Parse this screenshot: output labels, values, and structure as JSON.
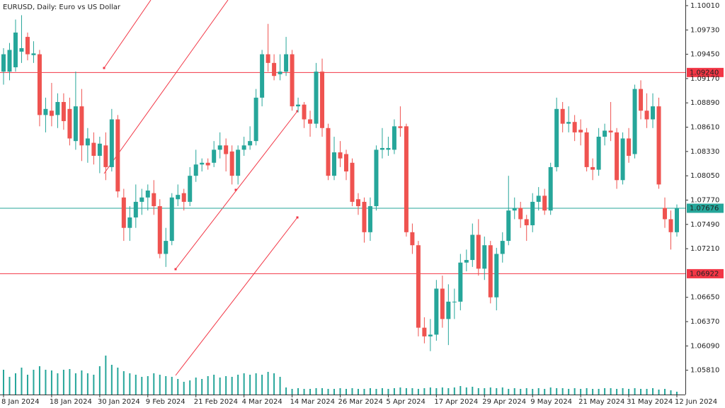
{
  "chart_data": {
    "type": "candlestick",
    "title": "EURUSD, Daily:  Euro vs US Dollar",
    "up_color": "#26a69a",
    "down_color": "#ef5350",
    "volume_color": "#26a69a",
    "categories": [
      "8 Jan 2024",
      null,
      null,
      null,
      null,
      null,
      null,
      null,
      "18 Jan 2024",
      null,
      null,
      null,
      null,
      null,
      null,
      null,
      "30 Jan 2024",
      null,
      null,
      null,
      null,
      null,
      null,
      null,
      "9 Feb 2024",
      null,
      null,
      null,
      null,
      null,
      null,
      null,
      "21 Feb 2024",
      null,
      null,
      null,
      null,
      null,
      null,
      null,
      "4 Mar 2024",
      null,
      null,
      null,
      null,
      null,
      null,
      null,
      "14 Mar 2024",
      null,
      null,
      null,
      null,
      null,
      null,
      null,
      "26 Mar 2024",
      null,
      null,
      null,
      null,
      null,
      null,
      null,
      "5 Apr 2024",
      null,
      null,
      null,
      null,
      null,
      null,
      null,
      "17 Apr 2024",
      null,
      null,
      null,
      null,
      null,
      null,
      null,
      "29 Apr 2024",
      null,
      null,
      null,
      null,
      null,
      null,
      null,
      "9 May 2024",
      null,
      null,
      null,
      null,
      null,
      null,
      null,
      "21 May 2024",
      null,
      null,
      null,
      null,
      null,
      null,
      null,
      "31 May 2024",
      null,
      null,
      null,
      null,
      null,
      null,
      null,
      "12 Jun 2024"
    ],
    "open": [
      1.0925,
      1.0925,
      1.093,
      1.0948,
      1.0965,
      1.0944,
      1.0945,
      1.0875,
      1.088,
      1.0875,
      1.089,
      1.0882,
      1.0845,
      1.0885,
      1.084,
      1.0843,
      1.0828,
      1.084,
      1.0815,
      1.087,
      1.078,
      1.0745,
      1.0757,
      1.0775,
      1.078,
      1.0785,
      1.077,
      1.0715,
      1.073,
      1.0778,
      1.0785,
      1.0775,
      1.0805,
      1.0818,
      1.082,
      1.082,
      1.0835,
      1.084,
      1.0833,
      1.0805,
      1.0835,
      1.084,
      1.0845,
      1.0895,
      1.0945,
      1.0935,
      1.0922,
      1.0925,
      1.0945,
      1.0885,
      1.0887,
      1.087,
      1.0865,
      1.0925,
      1.086,
      1.0805,
      1.0832,
      1.083,
      1.082,
      1.0778,
      1.0775,
      1.074,
      1.077,
      1.0835,
      1.0835,
      1.0835,
      1.0862,
      1.0862,
      1.074,
      1.0725,
      1.063,
      1.062,
      1.0622,
      1.0675,
      1.064,
      1.066,
      1.066,
      1.0705,
      1.0708,
      1.0737,
      1.0698,
      1.0725,
      1.0665,
      1.0715,
      1.073,
      1.0765,
      1.0768,
      1.0755,
      1.0748,
      1.0775,
      1.0782,
      1.0765,
      1.0815,
      1.0882,
      1.0865,
      1.0867,
      1.0858,
      1.0855,
      1.0815,
      1.0812,
      1.085,
      1.0857,
      1.0855,
      1.08,
      1.0848,
      1.083,
      1.0905,
      1.088,
      1.087,
      1.0885,
      1.0768,
      1.0755,
      1.074
    ],
    "high": [
      1.0952,
      1.0958,
      1.0985,
      1.099,
      1.097,
      1.096,
      1.095,
      1.0895,
      1.0912,
      1.09,
      1.09,
      1.0895,
      1.0925,
      1.0905,
      1.086,
      1.0855,
      1.085,
      1.0855,
      1.0882,
      1.0875,
      1.079,
      1.077,
      1.0795,
      1.079,
      1.0795,
      1.08,
      1.0778,
      1.0745,
      1.0785,
      1.0795,
      1.079,
      1.0815,
      1.0835,
      1.0825,
      1.0825,
      1.0845,
      1.0855,
      1.0848,
      1.084,
      1.084,
      1.085,
      1.0862,
      1.0905,
      1.095,
      1.098,
      1.0945,
      1.0945,
      1.0965,
      1.095,
      1.0895,
      1.089,
      1.088,
      1.0935,
      1.094,
      1.0865,
      1.085,
      1.0845,
      1.0835,
      1.0825,
      1.0785,
      1.078,
      1.078,
      1.084,
      1.086,
      1.085,
      1.087,
      1.0885,
      1.0865,
      1.075,
      1.073,
      1.0642,
      1.064,
      1.0685,
      1.069,
      1.068,
      1.0675,
      1.0715,
      1.072,
      1.075,
      1.0755,
      1.0735,
      1.073,
      1.0722,
      1.074,
      1.0805,
      1.078,
      1.0775,
      1.076,
      1.0785,
      1.0792,
      1.079,
      1.082,
      1.0895,
      1.089,
      1.0885,
      1.0875,
      1.087,
      1.086,
      1.0825,
      1.086,
      1.0865,
      1.089,
      1.086,
      1.0855,
      1.086,
      1.091,
      1.0915,
      1.09,
      1.09,
      1.0895,
      1.078,
      1.0765,
      1.0772
    ],
    "low": [
      1.091,
      1.0915,
      1.0925,
      1.0935,
      1.0938,
      1.0935,
      1.0862,
      1.0855,
      1.0862,
      1.086,
      1.0858,
      1.084,
      1.0835,
      1.0822,
      1.082,
      1.0818,
      1.0808,
      1.08,
      1.081,
      1.078,
      1.073,
      1.073,
      1.0745,
      1.076,
      1.0765,
      1.076,
      1.071,
      1.07,
      1.0725,
      1.077,
      1.0765,
      1.077,
      1.0798,
      1.081,
      1.0812,
      1.0815,
      1.0825,
      1.081,
      1.0795,
      1.0795,
      1.0828,
      1.0835,
      1.084,
      1.0885,
      1.0925,
      1.0915,
      1.0915,
      1.092,
      1.088,
      1.0878,
      1.086,
      1.085,
      1.086,
      1.085,
      1.08,
      1.08,
      1.0815,
      1.08,
      1.077,
      1.076,
      1.0728,
      1.073,
      1.0765,
      1.0825,
      1.0828,
      1.083,
      1.085,
      1.0735,
      1.0715,
      1.062,
      1.0612,
      1.0603,
      1.0615,
      1.063,
      1.061,
      1.064,
      1.065,
      1.0695,
      1.07,
      1.069,
      1.0685,
      1.0658,
      1.065,
      1.0705,
      1.0725,
      1.0755,
      1.0745,
      1.073,
      1.074,
      1.0765,
      1.076,
      1.076,
      1.081,
      1.0855,
      1.0855,
      1.0845,
      1.084,
      1.081,
      1.08,
      1.0805,
      1.084,
      1.0845,
      1.079,
      1.0795,
      1.082,
      1.0825,
      1.087,
      1.086,
      1.086,
      1.079,
      1.0745,
      1.072,
      1.0735
    ],
    "close": [
      1.0945,
      1.095,
      1.097,
      1.0952,
      1.0945,
      1.0946,
      1.0875,
      1.0882,
      1.0874,
      1.089,
      1.0868,
      1.0848,
      1.0885,
      1.084,
      1.0848,
      1.0828,
      1.0842,
      1.0815,
      1.087,
      1.0787,
      1.0745,
      1.0757,
      1.0775,
      1.078,
      1.0788,
      1.077,
      1.0715,
      1.073,
      1.078,
      1.0783,
      1.0775,
      1.0805,
      1.0818,
      1.082,
      1.0817,
      1.0835,
      1.084,
      1.083,
      1.0805,
      1.0835,
      1.084,
      1.0845,
      1.0895,
      1.0945,
      1.0935,
      1.092,
      1.0925,
      1.0945,
      1.0885,
      1.0887,
      1.087,
      1.0865,
      1.0925,
      1.086,
      1.0805,
      1.0832,
      1.0825,
      1.081,
      1.0775,
      1.077,
      1.074,
      1.077,
      1.0835,
      1.0837,
      1.0837,
      1.0862,
      1.086,
      1.074,
      1.0725,
      1.063,
      1.062,
      1.0622,
      1.0675,
      1.064,
      1.066,
      1.066,
      1.0705,
      1.0708,
      1.0737,
      1.0698,
      1.0725,
      1.0665,
      1.0715,
      1.073,
      1.0765,
      1.0768,
      1.0755,
      1.0748,
      1.0775,
      1.0782,
      1.0765,
      1.0815,
      1.0882,
      1.0865,
      1.0867,
      1.0855,
      1.0855,
      1.0815,
      1.0812,
      1.085,
      1.0857,
      1.0855,
      1.08,
      1.0848,
      1.0828,
      1.0905,
      1.088,
      1.087,
      1.0885,
      1.0795,
      1.0755,
      1.074,
      1.0768
    ],
    "volume": [
      35,
      25,
      30,
      38,
      28,
      35,
      40,
      35,
      34,
      30,
      35,
      36,
      30,
      34,
      30,
      28,
      40,
      55,
      42,
      38,
      33,
      30,
      28,
      25,
      26,
      30,
      28,
      26,
      25,
      22,
      18,
      20,
      24,
      22,
      26,
      28,
      24,
      26,
      25,
      28,
      30,
      28,
      30,
      28,
      32,
      30,
      25,
      10,
      8,
      9,
      8,
      8,
      9,
      9,
      8,
      8,
      9,
      8,
      9,
      8,
      8,
      9,
      8,
      9,
      8,
      9,
      10,
      9,
      9,
      8,
      9,
      10,
      9,
      10,
      9,
      10,
      12,
      10,
      11,
      9,
      9,
      10,
      9,
      10,
      8,
      9,
      8,
      9,
      8,
      9,
      8,
      10,
      9,
      9,
      8,
      9,
      8,
      9,
      8,
      8,
      9,
      9,
      8,
      9,
      8,
      9,
      8,
      8,
      9,
      7,
      8,
      6,
      4
    ],
    "ylim": [
      1.0553,
      1.10075
    ],
    "yticks": [
      {
        "value": 1.1001,
        "label": "1.10010"
      },
      {
        "value": 1.0973,
        "label": "1.09730"
      },
      {
        "value": 1.0945,
        "label": "1.09450"
      },
      {
        "value": 1.0917,
        "label": "1.09170"
      },
      {
        "value": 1.0889,
        "label": "1.08890"
      },
      {
        "value": 1.0861,
        "label": "1.08610"
      },
      {
        "value": 1.0833,
        "label": "1.08330"
      },
      {
        "value": 1.0805,
        "label": "1.08050"
      },
      {
        "value": 1.0777,
        "label": "1.07770"
      },
      {
        "value": 1.0749,
        "label": "1.07490"
      },
      {
        "value": 1.0721,
        "label": "1.07210"
      },
      {
        "value": 1.0665,
        "label": "1.06650"
      },
      {
        "value": 1.0637,
        "label": "1.06370"
      },
      {
        "value": 1.0609,
        "label": "1.06090"
      },
      {
        "value": 1.0581,
        "label": "1.05810"
      }
    ],
    "levels": [
      {
        "value": 1.0924,
        "label": "1.09240",
        "color": "#f23645"
      },
      {
        "value": 1.06922,
        "label": "1.06922",
        "color": "#f23645"
      },
      {
        "value": 1.07676,
        "label": "1.07676",
        "color": "#26a69a"
      }
    ]
  }
}
